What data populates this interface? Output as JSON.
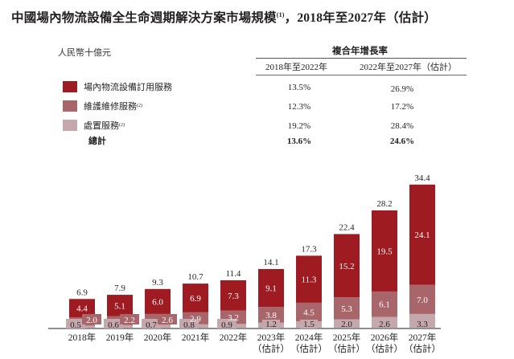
{
  "title": "中國場內物流設備全生命週期解決方案市場規模",
  "title_note": "(1)",
  "title_suffix": "，2018年至2027年（估計）",
  "unit": "人民幣十億元",
  "cagr": {
    "header": "複合年增長率",
    "columns": [
      "2018年至2022年",
      "2022年至2027年（估計）"
    ],
    "rows": [
      {
        "label": "場內物流設備訂用服務",
        "note": "",
        "color": "#9e1b22",
        "values": [
          "13.5%",
          "26.9%"
        ]
      },
      {
        "label": "維護維修服務",
        "note": "(2)",
        "color": "#a8656a",
        "values": [
          "12.3%",
          "17.2%"
        ]
      },
      {
        "label": "處置服務",
        "note": "(2)",
        "color": "#c4a8ad",
        "values": [
          "19.2%",
          "28.4%"
        ]
      },
      {
        "label": "總計",
        "note": "",
        "color": "",
        "values": [
          "13.6%",
          "24.6%"
        ]
      }
    ]
  },
  "chart_data": {
    "type": "bar",
    "stacked": true,
    "title": "中國場內物流設備全生命週期解決方案市場規模，2018年至2027年（估計）",
    "ylabel": "人民幣十億元",
    "xlabel": "",
    "categories": [
      "2018年",
      "2019年",
      "2020年",
      "2021年",
      "2022年",
      "2023年\n（估計）",
      "2024年\n（估計）",
      "2025年\n（估計）",
      "2026年\n（估計）",
      "2027年\n（估計）"
    ],
    "series": [
      {
        "name": "處置服務",
        "color": "#c4a8ad",
        "values": [
          0.5,
          0.6,
          0.7,
          0.8,
          0.9,
          1.2,
          1.5,
          2.0,
          2.6,
          3.3
        ]
      },
      {
        "name": "維護維修服務",
        "color": "#a8656a",
        "values": [
          2.0,
          2.2,
          2.6,
          2.9,
          3.2,
          3.8,
          4.5,
          5.3,
          6.1,
          7.0
        ]
      },
      {
        "name": "場內物流設備訂用服務",
        "color": "#9e1b22",
        "values": [
          4.4,
          5.1,
          6.0,
          6.9,
          7.3,
          9.1,
          11.3,
          15.2,
          19.5,
          24.1
        ]
      }
    ],
    "totals": [
      6.9,
      7.9,
      9.3,
      10.7,
      11.4,
      14.1,
      17.3,
      22.4,
      28.2,
      34.4
    ],
    "ylim": [
      0,
      35
    ],
    "grid": false,
    "legend": "top-left"
  }
}
